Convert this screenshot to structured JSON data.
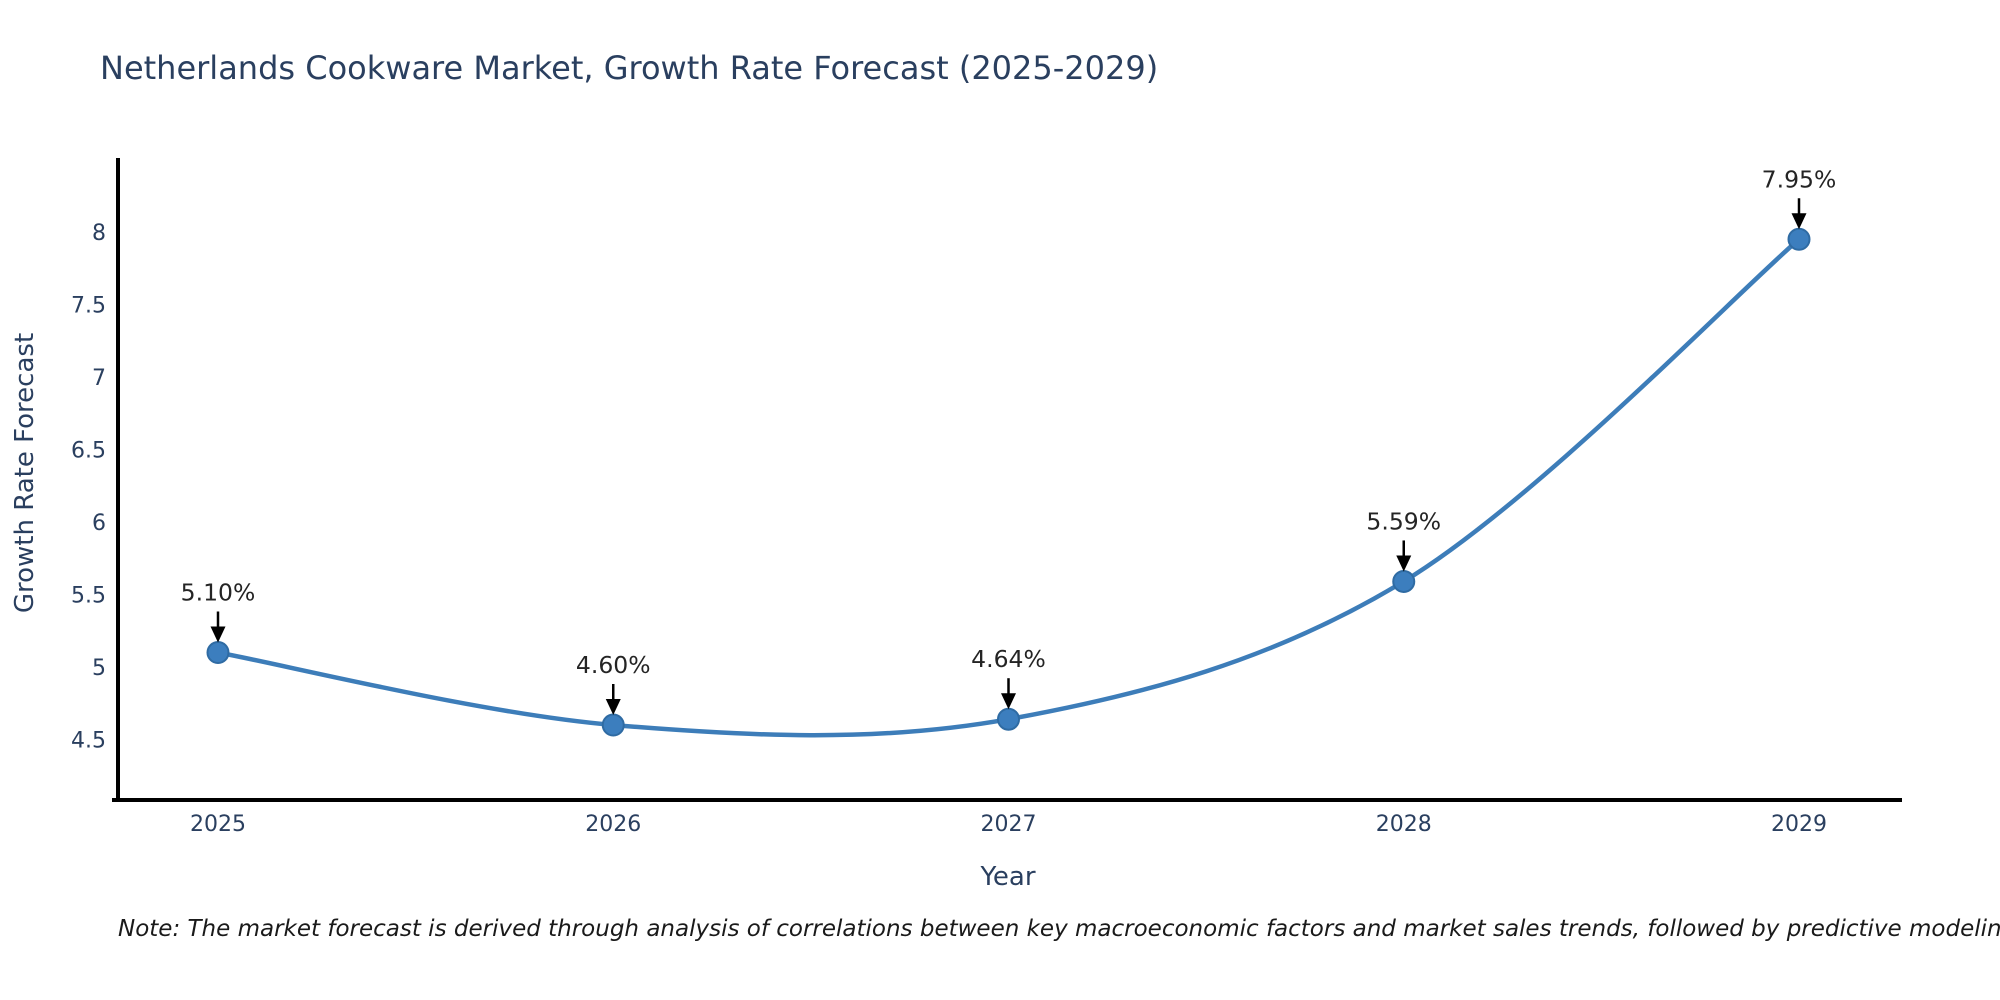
{
  "title": "Netherlands Cookware Market, Growth Rate Forecast (2025-2029)",
  "note": "Note: The market forecast is derived through analysis of correlations between key macroeconomic factors and market sales trends, followed by predictive modeling to project future sales",
  "chart_data": {
    "type": "line",
    "x": [
      "2025",
      "2026",
      "2027",
      "2028",
      "2029"
    ],
    "values": [
      5.1,
      4.6,
      4.64,
      5.59,
      7.95
    ],
    "point_labels": [
      "5.10%",
      "4.60%",
      "4.64%",
      "5.59%",
      "7.95%"
    ],
    "title": "Netherlands Cookware Market, Growth Rate Forecast (2025-2029)",
    "xlabel": "Year",
    "ylabel": "Growth Rate Forecast",
    "yticks": [
      4.5,
      5,
      5.5,
      6,
      6.5,
      7,
      7.5,
      8
    ],
    "ylim": [
      4.1,
      8.45
    ],
    "grid": false,
    "legend": "none",
    "annotation_style": "black-down-arrow",
    "colors": {
      "line": "#3d7db9",
      "marker_fill": "#3c7ebe",
      "marker_edge": "#2f6ba3",
      "axis_text": "#2a3f5f",
      "annotation_text": "#242424",
      "spine": "#000000",
      "background": "#ffffff"
    }
  }
}
